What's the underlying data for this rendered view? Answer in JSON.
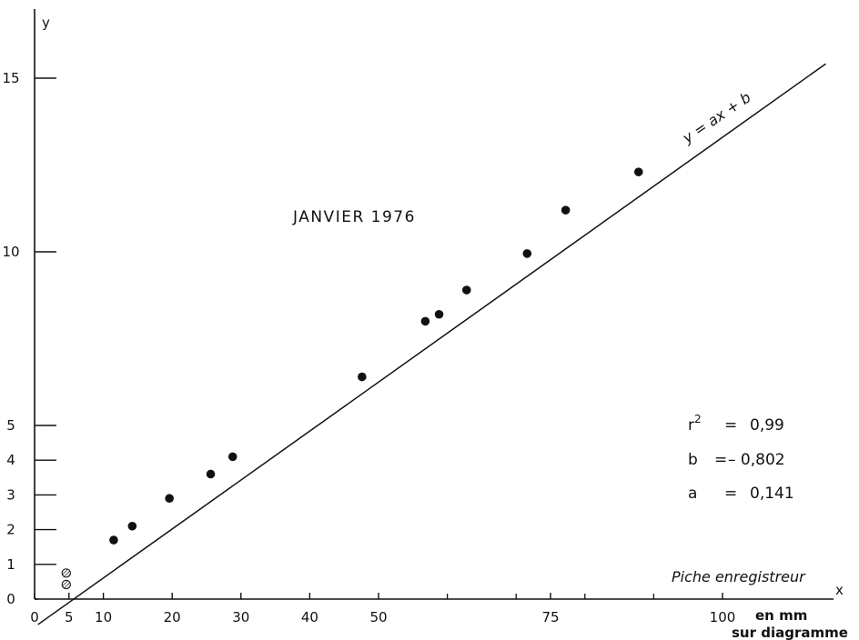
{
  "chart_data": {
    "type": "scatter",
    "title": "JANVIER 1976",
    "xlabel": "x",
    "ylabel": "y",
    "x_unit_label_line1": "en mm",
    "x_unit_label_line2": "sur diagramme",
    "x_axis_note": "Piche enregistreur",
    "xlim": [
      0,
      115
    ],
    "ylim": [
      0,
      16.5
    ],
    "x_ticks": [
      0,
      5,
      10,
      20,
      30,
      40,
      50,
      75,
      100
    ],
    "x_tick_labels": [
      "0",
      "5",
      "10",
      "20",
      "30",
      "40",
      "50",
      "75",
      "100"
    ],
    "x_minor_ticks": [
      60,
      70,
      80,
      90
    ],
    "y_ticks": [
      0,
      1,
      2,
      3,
      4,
      5,
      10,
      15
    ],
    "y_tick_labels": [
      "0",
      "1",
      "2",
      "3",
      "4",
      "5",
      "10",
      "15"
    ],
    "grid": false,
    "fit_line": {
      "label": "y = ax + b",
      "a": 0.141,
      "b": -0.802,
      "x_range": [
        0.5,
        115
      ]
    },
    "series": [
      {
        "marker": "filled-circle",
        "points": [
          {
            "x": 11.5,
            "y": 1.7
          },
          {
            "x": 14.2,
            "y": 2.1
          },
          {
            "x": 19.6,
            "y": 2.9
          },
          {
            "x": 25.6,
            "y": 3.6
          },
          {
            "x": 28.8,
            "y": 4.1
          },
          {
            "x": 47.6,
            "y": 6.4
          },
          {
            "x": 56.8,
            "y": 8.0
          },
          {
            "x": 58.8,
            "y": 8.2
          },
          {
            "x": 62.8,
            "y": 8.9
          },
          {
            "x": 71.6,
            "y": 9.95
          },
          {
            "x": 77.2,
            "y": 11.2
          },
          {
            "x": 87.8,
            "y": 12.3
          }
        ]
      },
      {
        "marker": "hatched-circle",
        "points": [
          {
            "x": 4.6,
            "y": 0.75
          },
          {
            "x": 4.6,
            "y": 0.42
          }
        ]
      }
    ],
    "stats": [
      {
        "label": "r²",
        "eq": "=",
        "value": "0,99"
      },
      {
        "label": "b",
        "eq": "=",
        "value": "– 0,802"
      },
      {
        "label": "a",
        "eq": "=",
        "value": "0,141"
      }
    ]
  }
}
